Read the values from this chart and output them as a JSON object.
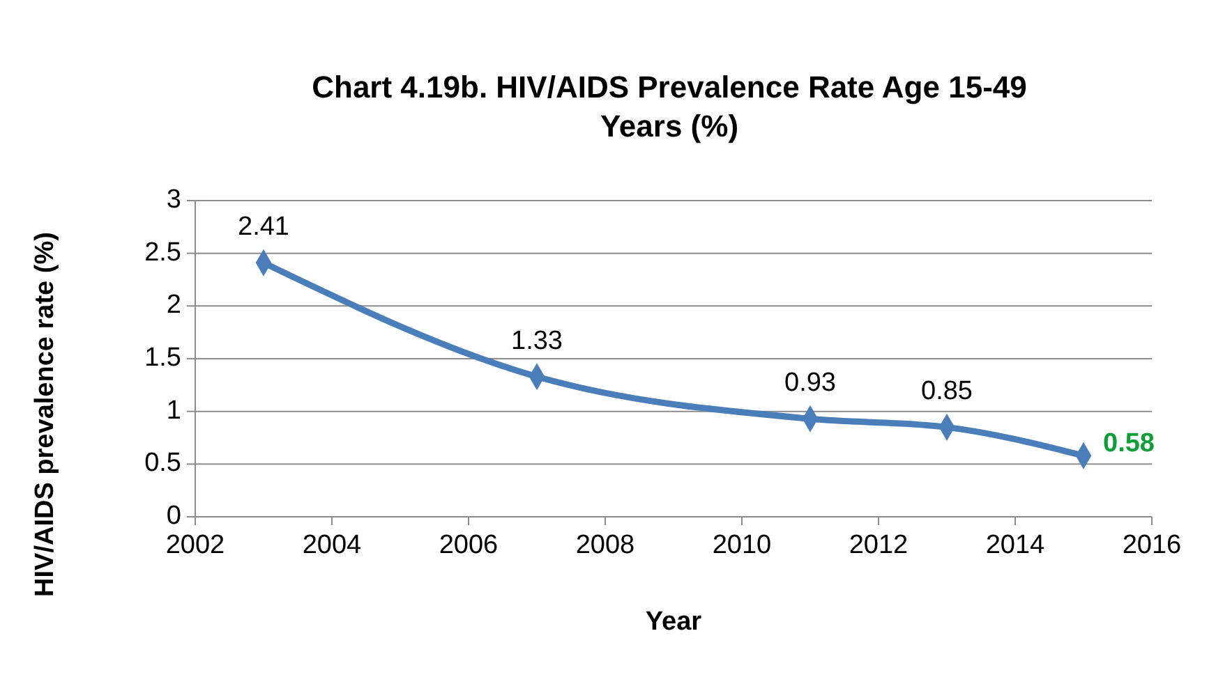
{
  "chart_data": {
    "type": "line",
    "title": "Chart 4.19b. HIV/AIDS Prevalence Rate Age 15-49 Years (%)",
    "xlabel": "Year",
    "ylabel": "HIV/AIDS prevalence rate (%)",
    "x": [
      2003,
      2007,
      2011,
      2013,
      2015
    ],
    "series": [
      {
        "color": "#4a7ebb",
        "values": [
          2.41,
          1.33,
          0.93,
          0.85,
          0.58
        ]
      }
    ],
    "xlim": [
      2002,
      2016
    ],
    "xticks": [
      2002,
      2004,
      2006,
      2008,
      2010,
      2012,
      2014,
      2016
    ],
    "ylim": [
      0,
      3
    ],
    "yticks": [
      0,
      0.5,
      1,
      1.5,
      2,
      2.5,
      3
    ],
    "grid": "y",
    "marker": "diamond",
    "line_style": "solid",
    "data_labels": true
  }
}
